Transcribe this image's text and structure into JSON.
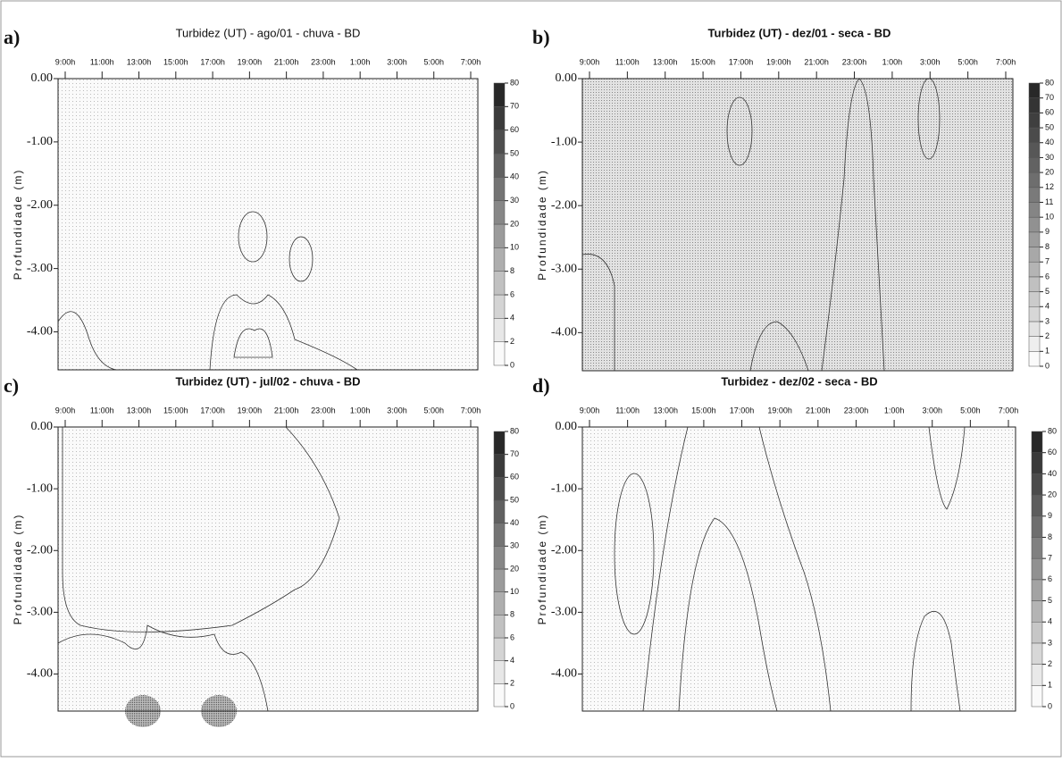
{
  "chart_data": [
    {
      "type": "contour",
      "label": "a)",
      "title": "Turbidez (UT) - ago/01 - chuva - BD",
      "categories": [
        "9:00h",
        "11:00h",
        "13:00h",
        "15:00h",
        "17:00h",
        "19:00h",
        "21:00h",
        "23:00h",
        "1:00h",
        "3:00h",
        "5:00h",
        "7:00h"
      ],
      "ylabel": "Profundidade (m)",
      "ylim": [
        -4.6,
        0
      ],
      "yticks": [
        {
          "value": 0,
          "label": "0.00"
        },
        {
          "value": -1,
          "label": "-1.00"
        },
        {
          "value": -2,
          "label": "-2.00"
        },
        {
          "value": -3,
          "label": "-3.00"
        },
        {
          "value": -4,
          "label": "-4.00"
        }
      ],
      "levels": [
        0,
        2,
        4,
        6,
        8,
        10,
        20,
        30,
        40,
        50,
        60,
        70,
        80
      ]
    },
    {
      "type": "contour",
      "label": "b)",
      "title": "Turbidez (UT) - dez/01 - seca - BD",
      "categories": [
        "9:00h",
        "11:00h",
        "13:00h",
        "15:00h",
        "17:00h",
        "19:00h",
        "21:00h",
        "23:00h",
        "1:00h",
        "3:00h",
        "5:00h",
        "7:00h"
      ],
      "ylabel": "Profundidade (m)",
      "ylim": [
        -4.6,
        0
      ],
      "yticks": [
        {
          "value": 0,
          "label": "0.00"
        },
        {
          "value": -1,
          "label": "-1.00"
        },
        {
          "value": -2,
          "label": "-2.00"
        },
        {
          "value": -3,
          "label": "-3.00"
        },
        {
          "value": -4,
          "label": "-4.00"
        }
      ],
      "levels": [
        0,
        1,
        2,
        3,
        4,
        5,
        6,
        7,
        8,
        9,
        10,
        11,
        12,
        20,
        30,
        40,
        50,
        60,
        70,
        80
      ]
    },
    {
      "type": "contour",
      "label": "c)",
      "title": "Turbidez (UT) - jul/02 - chuva - BD",
      "categories": [
        "9:00h",
        "11:00h",
        "13:00h",
        "15:00h",
        "17:00h",
        "19:00h",
        "21:00h",
        "23:00h",
        "1:00h",
        "3:00h",
        "5:00h",
        "7:00h"
      ],
      "ylabel": "Profundidade (m)",
      "ylim": [
        -4.6,
        0
      ],
      "yticks": [
        {
          "value": 0,
          "label": "0.00"
        },
        {
          "value": -1,
          "label": "-1.00"
        },
        {
          "value": -2,
          "label": "-2.00"
        },
        {
          "value": -3,
          "label": "-3.00"
        },
        {
          "value": -4,
          "label": "-4.00"
        }
      ],
      "levels": [
        0,
        2,
        4,
        6,
        8,
        10,
        20,
        30,
        40,
        50,
        60,
        70,
        80
      ]
    },
    {
      "type": "contour",
      "label": "d)",
      "title": "Turbidez - dez/02 - seca - BD",
      "categories": [
        "9:00h",
        "11:00h",
        "13:00h",
        "15:00h",
        "17:00h",
        "19:00h",
        "21:00h",
        "23:00h",
        "1:00h",
        "3:00h",
        "5:00h",
        "7:00h"
      ],
      "ylabel": "Profundidade (m)",
      "ylim": [
        -4.6,
        0
      ],
      "yticks": [
        {
          "value": 0,
          "label": "0.00"
        },
        {
          "value": -1,
          "label": "-1.00"
        },
        {
          "value": -2,
          "label": "-2.00"
        },
        {
          "value": -3,
          "label": "-3.00"
        },
        {
          "value": -4,
          "label": "-4.00"
        }
      ],
      "levels": [
        0,
        1,
        2,
        3,
        4,
        5,
        6,
        7,
        8,
        9,
        20,
        40,
        60,
        80
      ]
    }
  ]
}
